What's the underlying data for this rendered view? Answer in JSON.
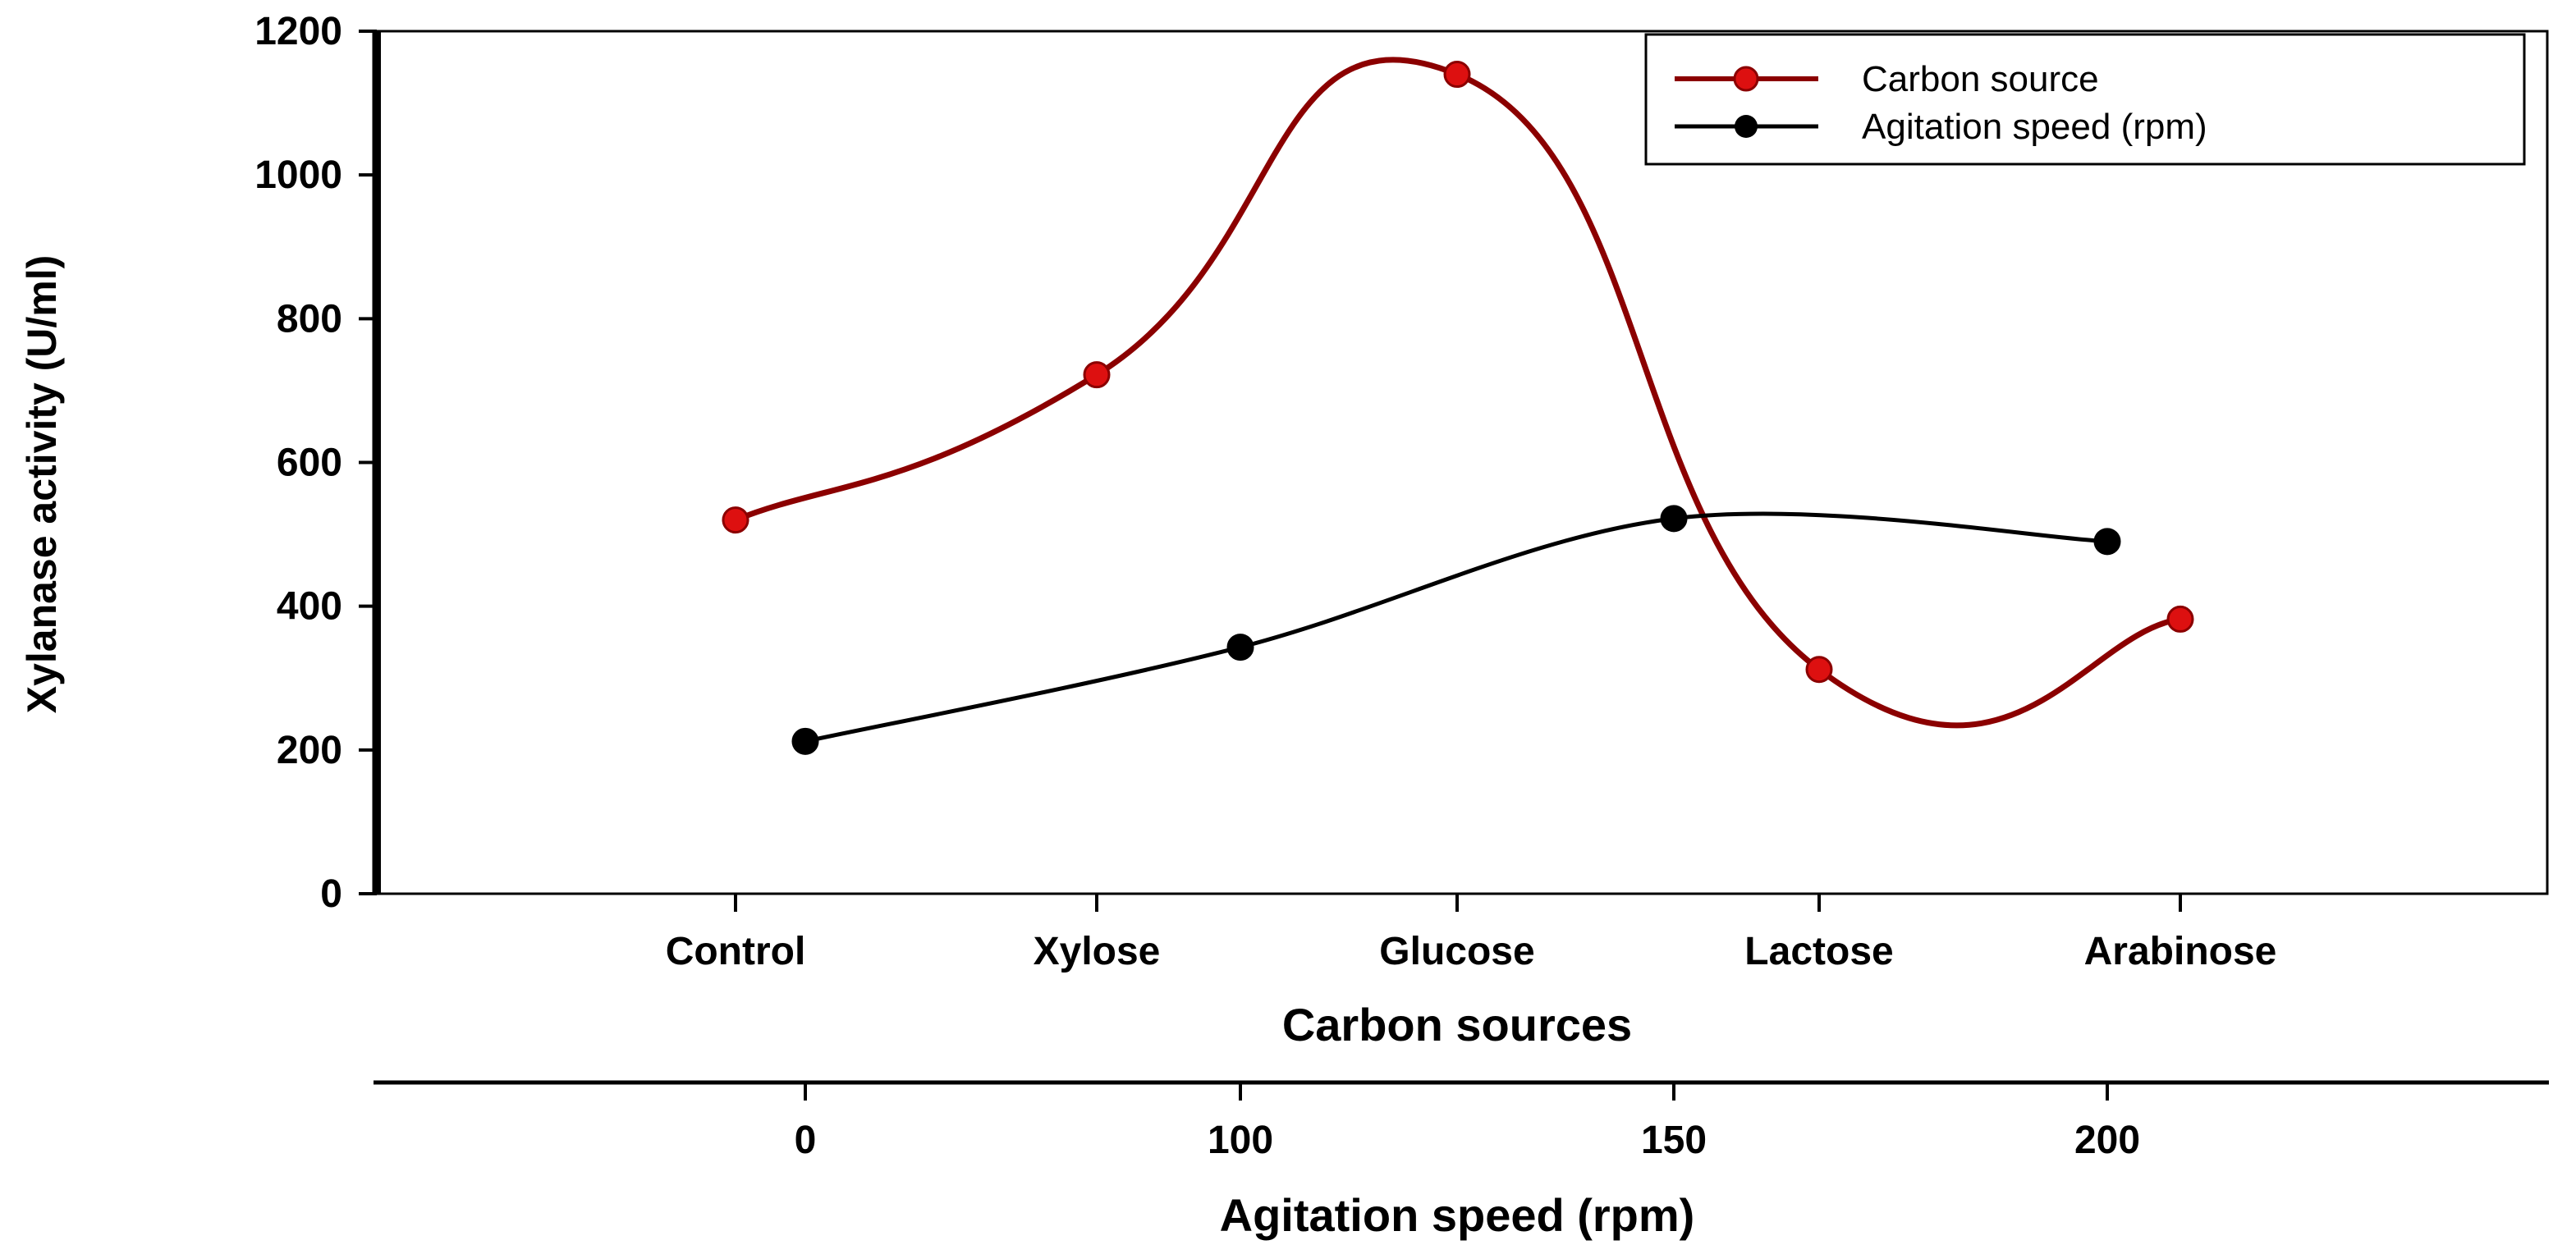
{
  "chart_data": {
    "type": "line",
    "ylabel": "Xylanase activity (U/ml)",
    "ylim": [
      0,
      1200
    ],
    "yticks": [
      0,
      200,
      400,
      600,
      800,
      1000,
      1200
    ],
    "grid": false,
    "legend_position": "top-right",
    "series": [
      {
        "name": "Carbon source",
        "color": "#8b0000",
        "marker_color": "#dd1010",
        "x_axis": "primary",
        "categories": [
          "Control",
          "Xylose",
          "Glucose",
          "Lactose",
          "Arabinose"
        ],
        "values": [
          520,
          722,
          1140,
          312,
          382
        ]
      },
      {
        "name": "Agitation speed (rpm)",
        "color": "#000000",
        "marker_color": "#000000",
        "x_axis": "secondary",
        "categories": [
          "0",
          "100",
          "150",
          "200"
        ],
        "values": [
          212,
          343,
          522,
          490
        ]
      }
    ],
    "x_axes": {
      "primary": {
        "label": "Carbon sources",
        "ticks": [
          "Control",
          "Xylose",
          "Glucose",
          "Lactose",
          "Arabinose"
        ]
      },
      "secondary": {
        "label": "Agitation speed (rpm)",
        "ticks": [
          "0",
          "100",
          "150",
          "200"
        ]
      }
    }
  }
}
